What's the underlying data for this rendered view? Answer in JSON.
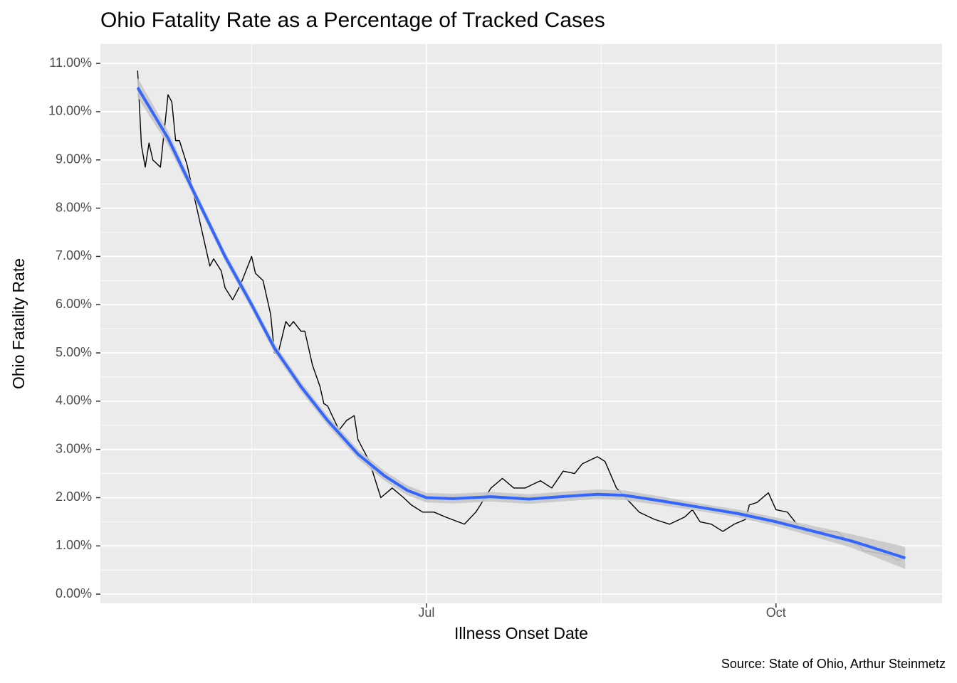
{
  "chart_data": {
    "type": "line",
    "title": "Ohio Fatality Rate as a Percentage of Tracked Cases",
    "x_label": "Illness Onset Date",
    "y_label": "Ohio Fatality Rate",
    "caption": "Source: State of Ohio, Arthur Steinmetz",
    "xlim": [
      97.2,
      318.7
    ],
    "xticks": [
      {
        "value": 183,
        "label": "Jul"
      },
      {
        "value": 275,
        "label": "Oct"
      }
    ],
    "ylim": [
      -0.19,
      11.4
    ],
    "yticks": [
      {
        "value": 0,
        "label": "0.00%"
      },
      {
        "value": 1,
        "label": "1.00%"
      },
      {
        "value": 2,
        "label": "2.00%"
      },
      {
        "value": 3,
        "label": "3.00%"
      },
      {
        "value": 4,
        "label": "4.00%"
      },
      {
        "value": 5,
        "label": "5.00%"
      },
      {
        "value": 6,
        "label": "6.00%"
      },
      {
        "value": 7,
        "label": "7.00%"
      },
      {
        "value": 8,
        "label": "8.00%"
      },
      {
        "value": 9,
        "label": "9.00%"
      },
      {
        "value": 10,
        "label": "10.00%"
      },
      {
        "value": 11,
        "label": "11.00%"
      }
    ],
    "grid": true,
    "series": [
      {
        "color": "#000000",
        "x": [
          107,
          108,
          109,
          110,
          111,
          113,
          115,
          116,
          117,
          118,
          120,
          122,
          124,
          126,
          127,
          129,
          130,
          132,
          134,
          137,
          138,
          140,
          142,
          143,
          144,
          146,
          147,
          148,
          150,
          151,
          153,
          155,
          156,
          157,
          160,
          162,
          164,
          165,
          168,
          171,
          174,
          177,
          179,
          182,
          185,
          188,
          193,
          196,
          200,
          203,
          206,
          209,
          213,
          216,
          219,
          222,
          224,
          228,
          230,
          233,
          236,
          239,
          243,
          247,
          251,
          253,
          255,
          258,
          261,
          264,
          267,
          268,
          270,
          273,
          275,
          278,
          281,
          283,
          285,
          288,
          291,
          294,
          297,
          298,
          302,
          305,
          307,
          309
        ],
        "values": [
          10.85,
          9.3,
          8.85,
          9.35,
          9.0,
          8.85,
          10.35,
          10.2,
          9.4,
          9.4,
          8.9,
          8.2,
          7.5,
          6.8,
          6.95,
          6.7,
          6.35,
          6.1,
          6.4,
          7.0,
          6.65,
          6.5,
          5.8,
          5.0,
          5.0,
          5.65,
          5.55,
          5.65,
          5.45,
          5.45,
          4.75,
          4.3,
          3.95,
          3.9,
          3.4,
          3.6,
          3.7,
          3.2,
          2.75,
          2.0,
          2.2,
          2.0,
          1.85,
          1.7,
          1.7,
          1.6,
          1.45,
          1.7,
          2.2,
          2.4,
          2.2,
          2.2,
          2.35,
          2.2,
          2.55,
          2.5,
          2.7,
          2.85,
          2.75,
          2.2,
          1.95,
          1.7,
          1.55,
          1.45,
          1.6,
          1.75,
          1.5,
          1.45,
          1.3,
          1.45,
          1.55,
          1.85,
          1.9,
          2.1,
          1.75,
          1.7,
          1.4,
          1.3,
          1.3,
          1.3,
          1.3,
          1.1,
          1.0,
          0.9,
          0.85,
          0.8,
          0.7,
          0.75
        ]
      },
      {
        "color": "#3366ff",
        "band_color": "#c8c8c8",
        "x": [
          107,
          115,
          122,
          130,
          137,
          143,
          150,
          157,
          165,
          172,
          178,
          183,
          190,
          200,
          210,
          220,
          228,
          235,
          245,
          255,
          265,
          275,
          285,
          295,
          309
        ],
        "values": [
          10.5,
          9.45,
          8.3,
          7.0,
          6.0,
          5.1,
          4.3,
          3.6,
          2.9,
          2.45,
          2.15,
          2.0,
          1.98,
          2.02,
          1.97,
          2.03,
          2.07,
          2.05,
          1.93,
          1.8,
          1.67,
          1.5,
          1.3,
          1.1,
          0.75
        ],
        "lower": [
          10.3,
          9.3,
          8.2,
          6.9,
          5.9,
          5.0,
          4.2,
          3.5,
          2.8,
          2.35,
          2.05,
          1.9,
          1.88,
          1.92,
          1.87,
          1.93,
          1.97,
          1.95,
          1.84,
          1.72,
          1.59,
          1.41,
          1.19,
          0.96,
          0.52
        ],
        "upper": [
          10.7,
          9.6,
          8.4,
          7.1,
          6.1,
          5.2,
          4.4,
          3.7,
          3.0,
          2.55,
          2.25,
          2.1,
          2.08,
          2.12,
          2.07,
          2.13,
          2.17,
          2.15,
          2.02,
          1.88,
          1.75,
          1.59,
          1.41,
          1.24,
          0.98
        ]
      }
    ]
  }
}
